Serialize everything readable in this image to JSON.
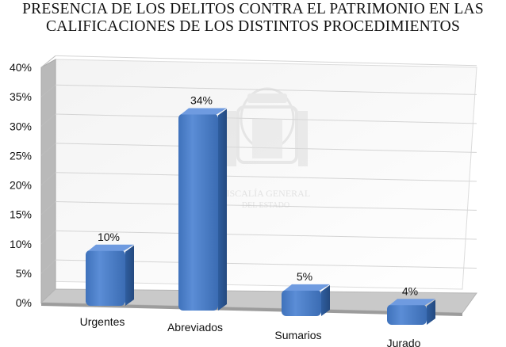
{
  "chart_data": {
    "type": "bar",
    "title": [
      "PRESENCIA DE LOS DELITOS CONTRA EL PATRIMONIO EN LAS",
      "CALIFICACIONES DE LOS DISTINTOS PROCEDIMIENTOS"
    ],
    "categories": [
      "Urgentes",
      "Abreviados",
      "Sumarios",
      "Jurado"
    ],
    "values": [
      10,
      34,
      5,
      4
    ],
    "value_labels": [
      "10%",
      "34%",
      "5%",
      "4%"
    ],
    "yticks": [
      "0%",
      "5%",
      "10%",
      "15%",
      "20%",
      "25%",
      "30%",
      "35%",
      "40%"
    ],
    "ylim": [
      0,
      40
    ],
    "xlabel": "",
    "ylabel": "",
    "grid": true,
    "legend": "none",
    "style": "3d-column",
    "colors": {
      "bar": "#4a7ec6",
      "bar_side": "#2a5595",
      "bar_top": "#6f9be0",
      "grid": "#d4d4d4"
    },
    "watermark": [
      "FISCALÍA GENERAL",
      "DEL ESTADO"
    ]
  }
}
